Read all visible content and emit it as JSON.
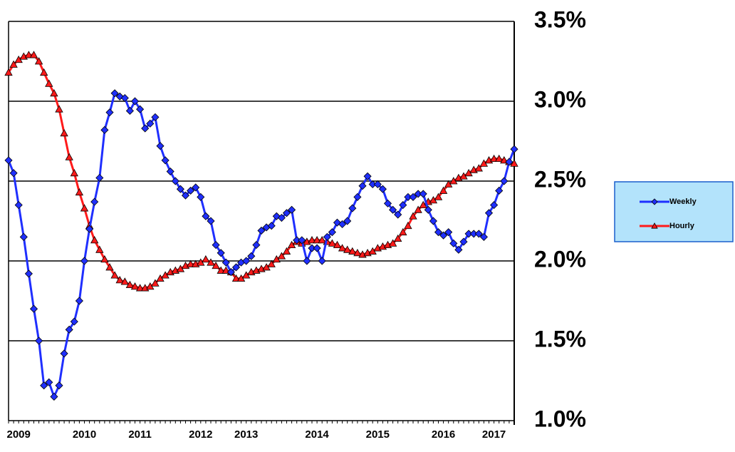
{
  "chart_data": {
    "type": "line",
    "categories": [
      null,
      null,
      "2009",
      null,
      null,
      null,
      null,
      null,
      null,
      null,
      null,
      null,
      null,
      null,
      null,
      "2010",
      null,
      null,
      null,
      null,
      null,
      null,
      null,
      null,
      null,
      null,
      "2011",
      null,
      null,
      null,
      null,
      null,
      null,
      null,
      null,
      null,
      null,
      null,
      "2012",
      null,
      null,
      null,
      null,
      null,
      null,
      null,
      null,
      "2013",
      null,
      null,
      null,
      null,
      null,
      null,
      null,
      null,
      null,
      null,
      null,
      null,
      null,
      "2014",
      null,
      null,
      null,
      null,
      null,
      null,
      null,
      null,
      null,
      null,
      null,
      "2015",
      null,
      null,
      null,
      null,
      null,
      null,
      null,
      null,
      null,
      null,
      null,
      null,
      "2016",
      null,
      null,
      null,
      null,
      null,
      null,
      null,
      null,
      null,
      "2017",
      null,
      null,
      null,
      null
    ],
    "series": [
      {
        "name": "Weekly",
        "color": "#1f2fff",
        "marker": "diamond",
        "values": [
          2.63,
          2.55,
          2.35,
          2.15,
          1.92,
          1.7,
          1.5,
          1.22,
          1.24,
          1.15,
          1.22,
          1.42,
          1.57,
          1.62,
          1.75,
          2.0,
          2.2,
          2.37,
          2.52,
          2.82,
          2.93,
          3.05,
          3.03,
          3.02,
          2.94,
          3.0,
          2.95,
          2.83,
          2.86,
          2.9,
          2.72,
          2.63,
          2.56,
          2.5,
          2.45,
          2.41,
          2.44,
          2.46,
          2.4,
          2.28,
          2.25,
          2.1,
          2.05,
          1.99,
          1.93,
          1.96,
          1.99,
          2.0,
          2.03,
          2.1,
          2.19,
          2.21,
          2.22,
          2.28,
          2.27,
          2.3,
          2.32,
          2.13,
          2.13,
          2.0,
          2.08,
          2.08,
          2.0,
          2.15,
          2.18,
          2.24,
          2.23,
          2.25,
          2.33,
          2.4,
          2.47,
          2.53,
          2.48,
          2.48,
          2.45,
          2.36,
          2.32,
          2.29,
          2.35,
          2.4,
          2.4,
          2.42,
          2.42,
          2.32,
          2.25,
          2.18,
          2.16,
          2.18,
          2.11,
          2.07,
          2.12,
          2.17,
          2.17,
          2.17,
          2.15,
          2.3,
          2.35,
          2.44,
          2.5,
          2.62,
          2.7
        ]
      },
      {
        "name": "Hourly",
        "color": "#ff1a1a",
        "marker": "triangle",
        "values": [
          3.18,
          3.23,
          3.26,
          3.28,
          3.29,
          3.29,
          3.25,
          3.18,
          3.11,
          3.05,
          2.95,
          2.8,
          2.65,
          2.55,
          2.43,
          2.33,
          2.22,
          2.13,
          2.07,
          2.01,
          1.96,
          1.91,
          1.88,
          1.87,
          1.85,
          1.84,
          1.83,
          1.83,
          1.84,
          1.86,
          1.89,
          1.91,
          1.93,
          1.94,
          1.95,
          1.97,
          1.98,
          1.98,
          1.99,
          2.01,
          1.99,
          1.97,
          1.94,
          1.94,
          1.93,
          1.89,
          1.89,
          1.91,
          1.93,
          1.94,
          1.95,
          1.96,
          1.98,
          2.01,
          2.03,
          2.06,
          2.1,
          2.12,
          2.11,
          2.12,
          2.13,
          2.13,
          2.13,
          2.12,
          2.11,
          2.1,
          2.08,
          2.07,
          2.06,
          2.05,
          2.04,
          2.05,
          2.06,
          2.08,
          2.09,
          2.1,
          2.11,
          2.14,
          2.18,
          2.22,
          2.28,
          2.32,
          2.35,
          2.37,
          2.38,
          2.4,
          2.44,
          2.48,
          2.5,
          2.52,
          2.53,
          2.55,
          2.57,
          2.58,
          2.61,
          2.63,
          2.64,
          2.64,
          2.63,
          2.62,
          2.61
        ]
      }
    ],
    "ylim": [
      1.0,
      3.5
    ],
    "yticks": [
      {
        "value": 1.0,
        "label": "1.0%"
      },
      {
        "value": 1.5,
        "label": "1.5%"
      },
      {
        "value": 2.0,
        "label": "2.0%"
      },
      {
        "value": 2.5,
        "label": "2.5%"
      },
      {
        "value": 3.0,
        "label": "3.0%"
      },
      {
        "value": 3.5,
        "label": "3.5%"
      }
    ],
    "y_axis_side": "right",
    "grid": true,
    "legend": "right"
  }
}
